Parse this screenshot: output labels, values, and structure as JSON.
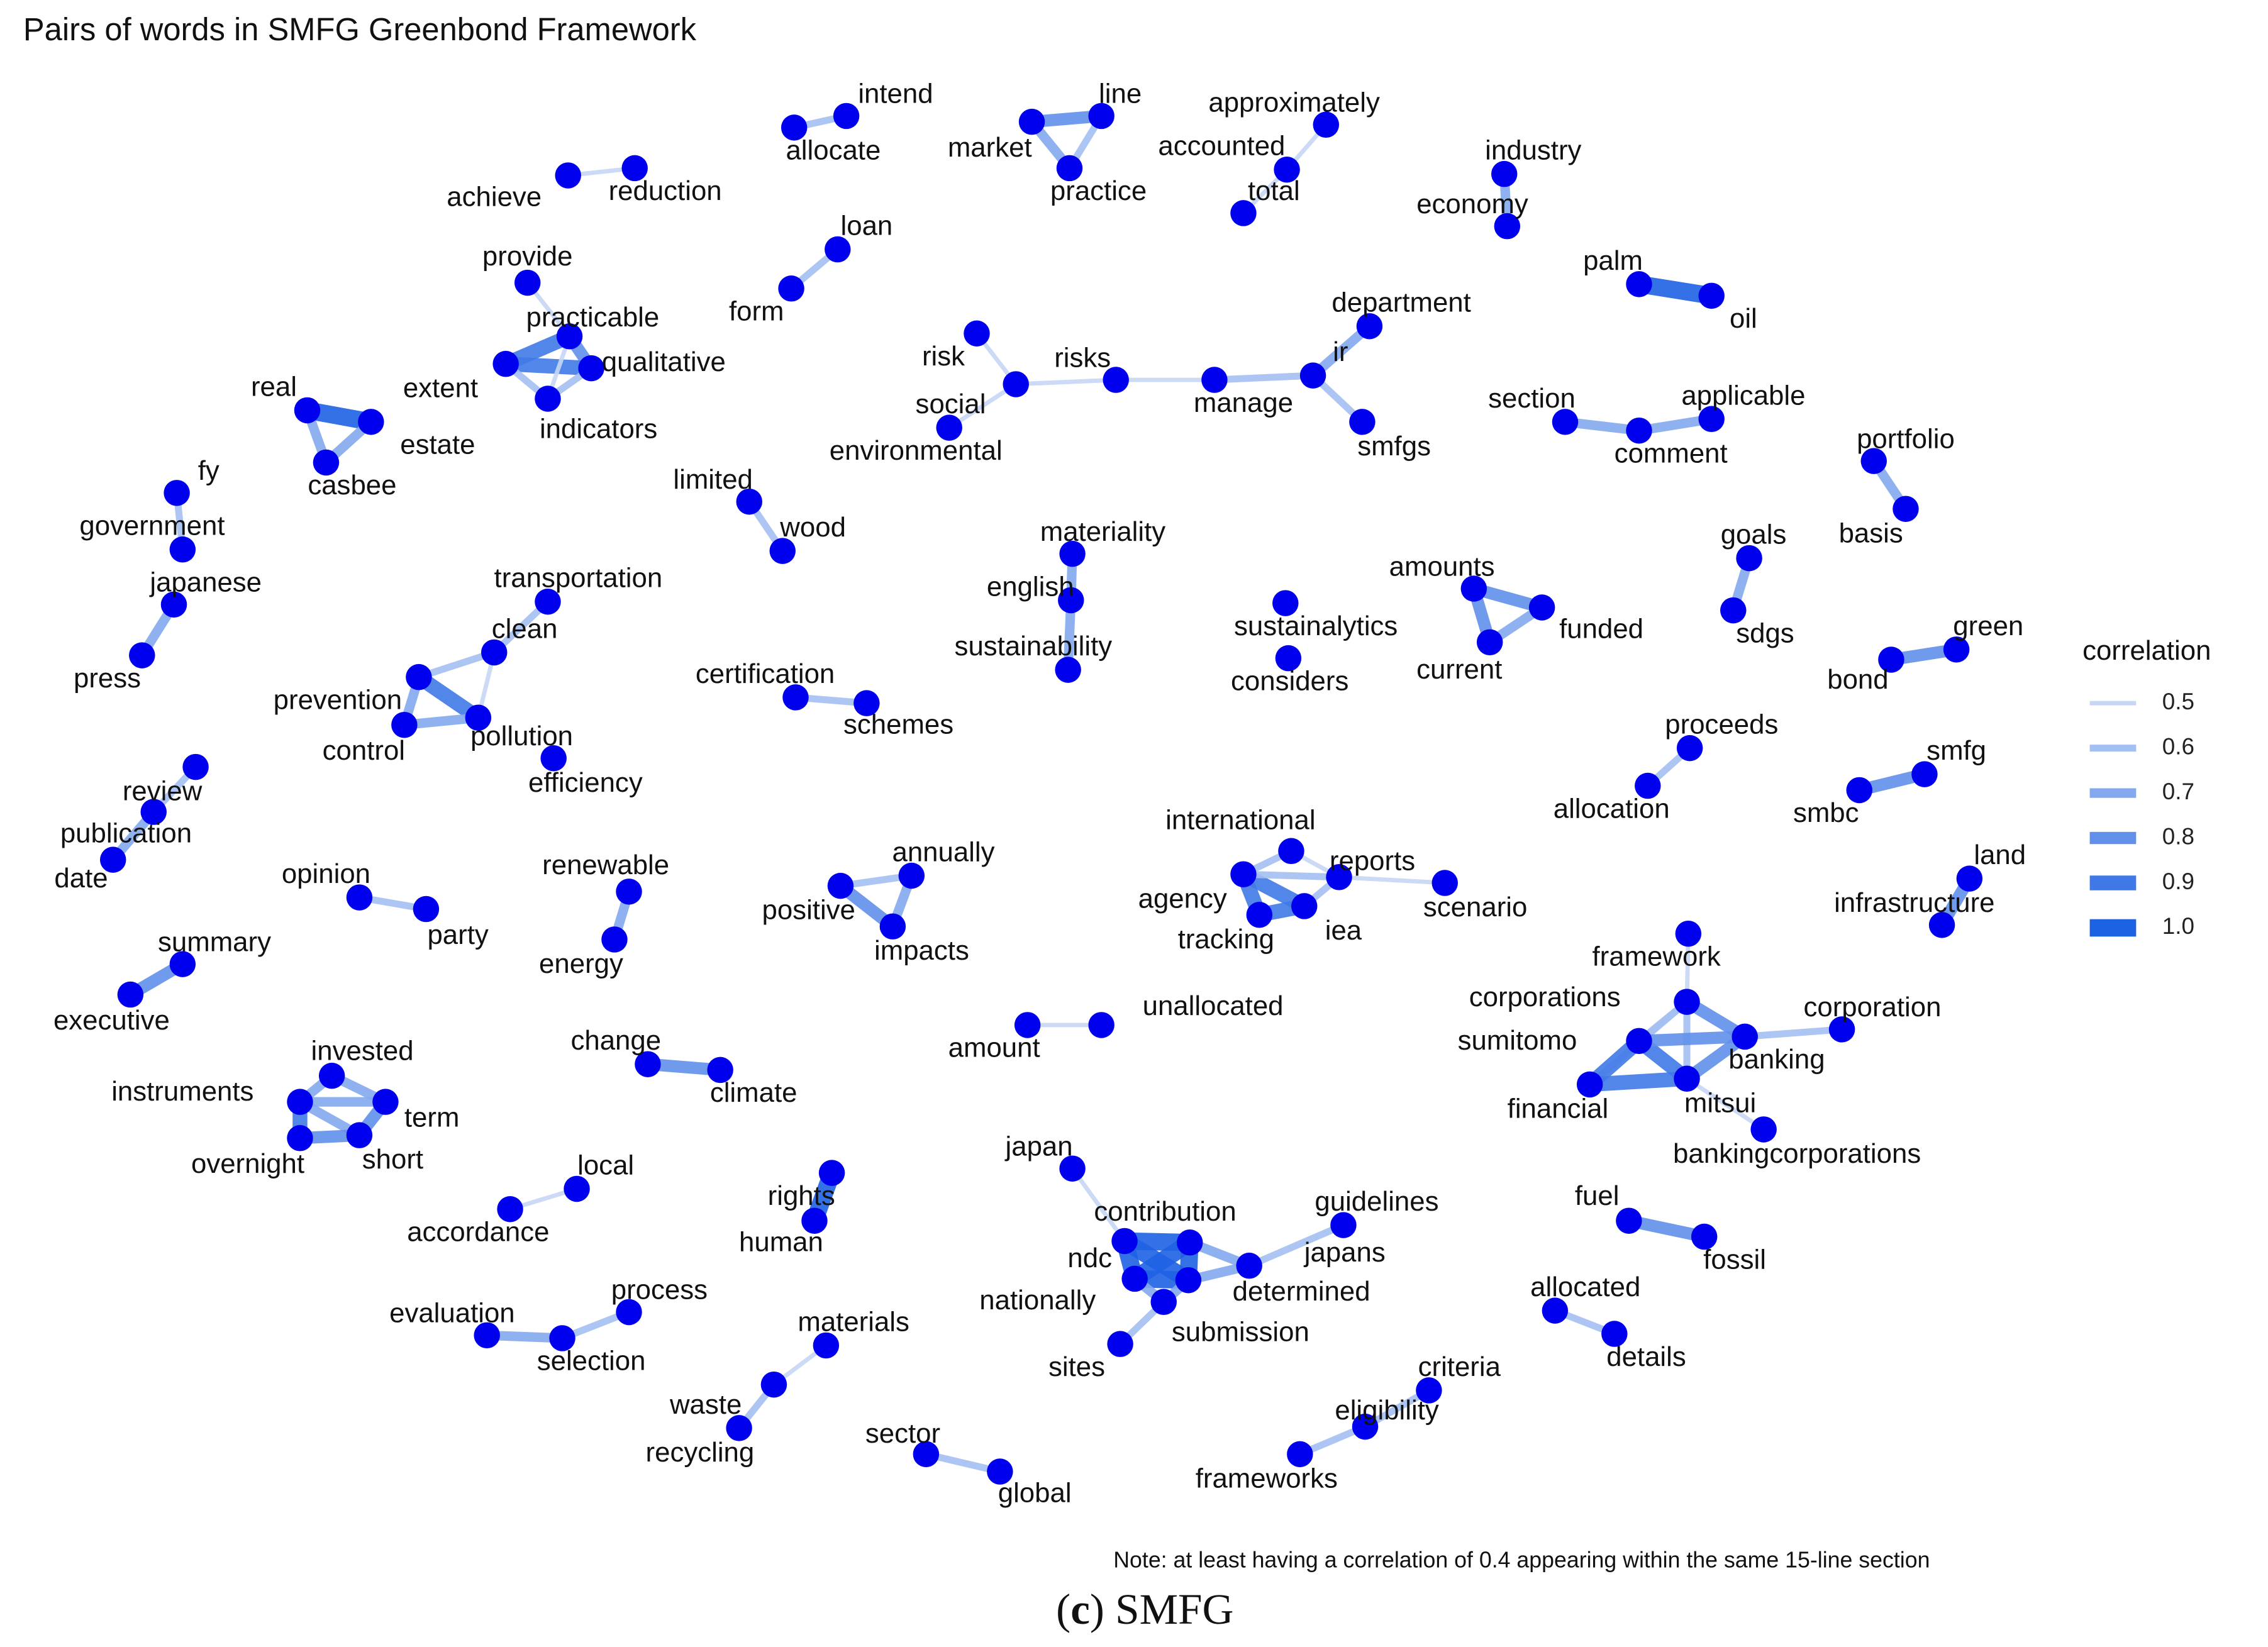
{
  "title": "Pairs of words in SMFG Greenbond Framework",
  "nodes": [
    {
      "label": "intend"
    },
    {
      "label": "allocate"
    },
    {
      "label": "line"
    },
    {
      "label": "market"
    },
    {
      "label": "practice"
    },
    {
      "label": "approximately"
    },
    {
      "label": "accounted"
    },
    {
      "label": "total"
    },
    {
      "label": "industry"
    },
    {
      "label": "economy"
    },
    {
      "label": "achieve"
    },
    {
      "label": "reduction"
    },
    {
      "label": "loan"
    },
    {
      "label": "form"
    },
    {
      "label": "provide"
    },
    {
      "label": "practicable"
    },
    {
      "label": "qualitative"
    },
    {
      "label": "extent"
    },
    {
      "label": "indicators"
    },
    {
      "label": "real"
    },
    {
      "label": "estate"
    },
    {
      "label": "casbee"
    },
    {
      "label": "palm"
    },
    {
      "label": "oil"
    },
    {
      "label": "department"
    },
    {
      "label": "ir"
    },
    {
      "label": "risk"
    },
    {
      "label": "risks"
    },
    {
      "label": "social"
    },
    {
      "label": "environmental"
    },
    {
      "label": "manage"
    },
    {
      "label": "smfgs"
    },
    {
      "label": "section"
    },
    {
      "label": "comment"
    },
    {
      "label": "applicable"
    },
    {
      "label": "portfolio"
    },
    {
      "label": "basis"
    },
    {
      "label": "fy"
    },
    {
      "label": "government"
    },
    {
      "label": "limited"
    },
    {
      "label": "wood"
    },
    {
      "label": "japanese"
    },
    {
      "label": "press"
    },
    {
      "label": "materiality"
    },
    {
      "label": "english"
    },
    {
      "label": "sustainability"
    },
    {
      "label": "amounts"
    },
    {
      "label": "funded"
    },
    {
      "label": "current"
    },
    {
      "label": "goals"
    },
    {
      "label": "sdgs"
    },
    {
      "label": "sustainalytics"
    },
    {
      "label": "considers"
    },
    {
      "label": "transportation"
    },
    {
      "label": "clean"
    },
    {
      "label": "prevention"
    },
    {
      "label": "control"
    },
    {
      "label": "pollution"
    },
    {
      "label": "efficiency"
    },
    {
      "label": "certification"
    },
    {
      "label": "schemes"
    },
    {
      "label": "green"
    },
    {
      "label": "bond"
    },
    {
      "label": "review"
    },
    {
      "label": "publication"
    },
    {
      "label": "date"
    },
    {
      "label": "proceeds"
    },
    {
      "label": "allocation"
    },
    {
      "label": "smfg"
    },
    {
      "label": "smbc"
    },
    {
      "label": "opinion"
    },
    {
      "label": "party"
    },
    {
      "label": "renewable"
    },
    {
      "label": "energy"
    },
    {
      "label": "annually"
    },
    {
      "label": "positive"
    },
    {
      "label": "impacts"
    },
    {
      "label": "international"
    },
    {
      "label": "reports"
    },
    {
      "label": "agency"
    },
    {
      "label": "tracking"
    },
    {
      "label": "iea"
    },
    {
      "label": "scenario"
    },
    {
      "label": "land"
    },
    {
      "label": "infrastructure"
    },
    {
      "label": "summary"
    },
    {
      "label": "executive"
    },
    {
      "label": "framework"
    },
    {
      "label": "corporations"
    },
    {
      "label": "corporation"
    },
    {
      "label": "sumitomo"
    },
    {
      "label": "banking"
    },
    {
      "label": "financial"
    },
    {
      "label": "mitsui"
    },
    {
      "label": "bankingcorporations"
    },
    {
      "label": "amount"
    },
    {
      "label": "unallocated"
    },
    {
      "label": "invested"
    },
    {
      "label": "instruments"
    },
    {
      "label": "term"
    },
    {
      "label": "overnight"
    },
    {
      "label": "short"
    },
    {
      "label": "change"
    },
    {
      "label": "climate"
    },
    {
      "label": "local"
    },
    {
      "label": "accordance"
    },
    {
      "label": "rights"
    },
    {
      "label": "human"
    },
    {
      "label": "japan"
    },
    {
      "label": "contribution"
    },
    {
      "label": "guidelines"
    },
    {
      "label": "ndc"
    },
    {
      "label": "japans"
    },
    {
      "label": "nationally"
    },
    {
      "label": "determined"
    },
    {
      "label": "submission"
    },
    {
      "label": "sites"
    },
    {
      "label": "fuel"
    },
    {
      "label": "fossil"
    },
    {
      "label": "process"
    },
    {
      "label": "evaluation"
    },
    {
      "label": "selection"
    },
    {
      "label": "allocated"
    },
    {
      "label": "details"
    },
    {
      "label": "materials"
    },
    {
      "label": "waste"
    },
    {
      "label": "recycling"
    },
    {
      "label": "criteria"
    },
    {
      "label": "eligibility"
    },
    {
      "label": "frameworks"
    },
    {
      "label": "sector"
    },
    {
      "label": "global"
    }
  ],
  "edges": [
    {
      "source": "intend",
      "target": "allocate",
      "correlation": 0.6
    },
    {
      "source": "line",
      "target": "market",
      "correlation": 0.8
    },
    {
      "source": "market",
      "target": "practice",
      "correlation": 0.7
    },
    {
      "source": "line",
      "target": "practice",
      "correlation": 0.6
    },
    {
      "source": "approximately",
      "target": "accounted",
      "correlation": 0.5
    },
    {
      "source": "accounted",
      "target": "total",
      "correlation": 0.5
    },
    {
      "source": "industry",
      "target": "economy",
      "correlation": 0.7
    },
    {
      "source": "achieve",
      "target": "reduction",
      "correlation": 0.5
    },
    {
      "source": "loan",
      "target": "form",
      "correlation": 0.6
    },
    {
      "source": "provide",
      "target": "practicable",
      "correlation": 0.5
    },
    {
      "source": "practicable",
      "target": "qualitative",
      "correlation": 0.8
    },
    {
      "source": "practicable",
      "target": "extent",
      "correlation": 0.9
    },
    {
      "source": "extent",
      "target": "qualitative",
      "correlation": 0.9
    },
    {
      "source": "extent",
      "target": "indicators",
      "correlation": 0.6
    },
    {
      "source": "qualitative",
      "target": "indicators",
      "correlation": 0.6
    },
    {
      "source": "practicable",
      "target": "indicators",
      "correlation": 0.5
    },
    {
      "source": "real",
      "target": "estate",
      "correlation": 1.0
    },
    {
      "source": "real",
      "target": "casbee",
      "correlation": 0.7
    },
    {
      "source": "estate",
      "target": "casbee",
      "correlation": 0.7
    },
    {
      "source": "palm",
      "target": "oil",
      "correlation": 1.0
    },
    {
      "source": "risk",
      "target": "social",
      "correlation": 0.5
    },
    {
      "source": "social",
      "target": "risks",
      "correlation": 0.5
    },
    {
      "source": "social",
      "target": "environmental",
      "correlation": 0.5
    },
    {
      "source": "risks",
      "target": "manage",
      "correlation": 0.5
    },
    {
      "source": "manage",
      "target": "ir",
      "correlation": 0.6
    },
    {
      "source": "ir",
      "target": "department",
      "correlation": 0.7
    },
    {
      "source": "ir",
      "target": "smfgs",
      "correlation": 0.6
    },
    {
      "source": "section",
      "target": "comment",
      "correlation": 0.7
    },
    {
      "source": "comment",
      "target": "applicable",
      "correlation": 0.7
    },
    {
      "source": "portfolio",
      "target": "basis",
      "correlation": 0.7
    },
    {
      "source": "fy",
      "target": "government",
      "correlation": 0.6
    },
    {
      "source": "limited",
      "target": "wood",
      "correlation": 0.6
    },
    {
      "source": "japanese",
      "target": "press",
      "correlation": 0.7
    },
    {
      "source": "materiality",
      "target": "english",
      "correlation": 0.7
    },
    {
      "source": "english",
      "target": "sustainability",
      "correlation": 0.7
    },
    {
      "source": "amounts",
      "target": "funded",
      "correlation": 0.8
    },
    {
      "source": "amounts",
      "target": "current",
      "correlation": 0.8
    },
    {
      "source": "funded",
      "target": "current",
      "correlation": 0.7
    },
    {
      "source": "goals",
      "target": "sdgs",
      "correlation": 0.7
    },
    {
      "source": "transportation",
      "target": "clean",
      "correlation": 0.6
    },
    {
      "source": "clean",
      "target": "prevention",
      "correlation": 0.6
    },
    {
      "source": "clean",
      "target": "pollution",
      "correlation": 0.5
    },
    {
      "source": "prevention",
      "target": "pollution",
      "correlation": 0.9
    },
    {
      "source": "prevention",
      "target": "control",
      "correlation": 0.7
    },
    {
      "source": "control",
      "target": "pollution",
      "correlation": 0.7
    },
    {
      "source": "certification",
      "target": "schemes",
      "correlation": 0.6
    },
    {
      "source": "green",
      "target": "bond",
      "correlation": 0.8
    },
    {
      "source": "review",
      "target": "publication",
      "correlation": 0.6
    },
    {
      "source": "publication",
      "target": "date",
      "correlation": 0.7
    },
    {
      "source": "proceeds",
      "target": "allocation",
      "correlation": 0.6
    },
    {
      "source": "smfg",
      "target": "smbc",
      "correlation": 0.8
    },
    {
      "source": "opinion",
      "target": "party",
      "correlation": 0.6
    },
    {
      "source": "renewable",
      "target": "energy",
      "correlation": 0.7
    },
    {
      "source": "annually",
      "target": "positive",
      "correlation": 0.6
    },
    {
      "source": "positive",
      "target": "impacts",
      "correlation": 0.8
    },
    {
      "source": "annually",
      "target": "impacts",
      "correlation": 0.7
    },
    {
      "source": "international",
      "target": "agency",
      "correlation": 0.6
    },
    {
      "source": "international",
      "target": "reports",
      "correlation": 0.5
    },
    {
      "source": "agency",
      "target": "tracking",
      "correlation": 0.9
    },
    {
      "source": "agency",
      "target": "iea",
      "correlation": 0.9
    },
    {
      "source": "tracking",
      "target": "iea",
      "correlation": 0.9
    },
    {
      "source": "agency",
      "target": "reports",
      "correlation": 0.6
    },
    {
      "source": "reports",
      "target": "iea",
      "correlation": 0.6
    },
    {
      "source": "reports",
      "target": "scenario",
      "correlation": 0.5
    },
    {
      "source": "land",
      "target": "infrastructure",
      "correlation": 0.8
    },
    {
      "source": "summary",
      "target": "executive",
      "correlation": 0.8
    },
    {
      "source": "framework",
      "target": "corporations",
      "correlation": 0.5
    },
    {
      "source": "corporations",
      "target": "sumitomo",
      "correlation": 0.6
    },
    {
      "source": "corporations",
      "target": "banking",
      "correlation": 0.8
    },
    {
      "source": "corporations",
      "target": "mitsui",
      "correlation": 0.6
    },
    {
      "source": "corporations",
      "target": "financial",
      "correlation": 0.6
    },
    {
      "source": "sumitomo",
      "target": "financial",
      "correlation": 0.9
    },
    {
      "source": "sumitomo",
      "target": "mitsui",
      "correlation": 0.9
    },
    {
      "source": "financial",
      "target": "mitsui",
      "correlation": 0.9
    },
    {
      "source": "sumitomo",
      "target": "banking",
      "correlation": 0.8
    },
    {
      "source": "banking",
      "target": "mitsui",
      "correlation": 0.8
    },
    {
      "source": "banking",
      "target": "corporation",
      "correlation": 0.6
    },
    {
      "source": "mitsui",
      "target": "bankingcorporations",
      "correlation": 0.5
    },
    {
      "source": "amount",
      "target": "unallocated",
      "correlation": 0.5
    },
    {
      "source": "invested",
      "target": "instruments",
      "correlation": 0.7
    },
    {
      "source": "invested",
      "target": "term",
      "correlation": 0.7
    },
    {
      "source": "instruments",
      "target": "overnight",
      "correlation": 0.9
    },
    {
      "source": "instruments",
      "target": "term",
      "correlation": 0.7
    },
    {
      "source": "instruments",
      "target": "short",
      "correlation": 0.7
    },
    {
      "source": "term",
      "target": "short",
      "correlation": 0.8
    },
    {
      "source": "overnight",
      "target": "short",
      "correlation": 0.8
    },
    {
      "source": "change",
      "target": "climate",
      "correlation": 0.8
    },
    {
      "source": "local",
      "target": "accordance",
      "correlation": 0.5
    },
    {
      "source": "rights",
      "target": "human",
      "correlation": 1.0
    },
    {
      "source": "japan",
      "target": "ndc",
      "correlation": 0.5
    },
    {
      "source": "contribution",
      "target": "ndc",
      "correlation": 1.0
    },
    {
      "source": "contribution",
      "target": "nationally",
      "correlation": 1.0
    },
    {
      "source": "contribution",
      "target": "determined",
      "correlation": 1.0
    },
    {
      "source": "ndc",
      "target": "nationally",
      "correlation": 1.0
    },
    {
      "source": "nationally",
      "target": "determined",
      "correlation": 1.0
    },
    {
      "source": "ndc",
      "target": "determined",
      "correlation": 1.0
    },
    {
      "source": "contribution",
      "target": "japans",
      "correlation": 0.7
    },
    {
      "source": "japans",
      "target": "guidelines",
      "correlation": 0.6
    },
    {
      "source": "determined",
      "target": "japans",
      "correlation": 0.7
    },
    {
      "source": "nationally",
      "target": "submission",
      "correlation": 0.7
    },
    {
      "source": "submission",
      "target": "determined",
      "correlation": 0.7
    },
    {
      "source": "submission",
      "target": "sites",
      "correlation": 0.6
    },
    {
      "source": "fuel",
      "target": "fossil",
      "correlation": 0.8
    },
    {
      "source": "process",
      "target": "selection",
      "correlation": 0.6
    },
    {
      "source": "evaluation",
      "target": "selection",
      "correlation": 0.7
    },
    {
      "source": "allocated",
      "target": "details",
      "correlation": 0.6
    },
    {
      "source": "materials",
      "target": "waste",
      "correlation": 0.5
    },
    {
      "source": "waste",
      "target": "recycling",
      "correlation": 0.6
    },
    {
      "source": "criteria",
      "target": "eligibility",
      "correlation": 0.6
    },
    {
      "source": "eligibility",
      "target": "frameworks",
      "correlation": 0.6
    },
    {
      "source": "sector",
      "target": "global",
      "correlation": 0.6
    }
  ],
  "legend": {
    "title": "correlation",
    "breaks": [
      0.5,
      0.6,
      0.7,
      0.8,
      0.9,
      {
        "value": 1,
        "label": "1.0"
      }
    ]
  },
  "note": "Note: at least having a correlation of 0.4 appearing within the same 15-line section",
  "caption": {
    "open": "(",
    "letter": "c",
    "rest": ") SMFG"
  }
}
